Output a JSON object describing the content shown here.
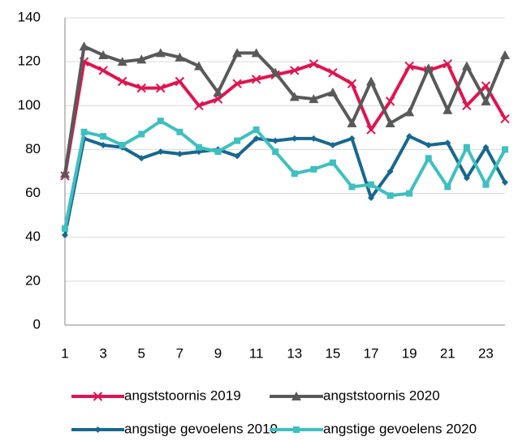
{
  "chart_data": {
    "type": "line",
    "categories": [
      1,
      null,
      3,
      null,
      5,
      null,
      7,
      null,
      9,
      null,
      11,
      null,
      13,
      null,
      15,
      null,
      17,
      null,
      19,
      null,
      21,
      null,
      23,
      null
    ],
    "ylim": [
      0,
      140
    ],
    "yticks": [
      0,
      20,
      40,
      60,
      80,
      100,
      120,
      140
    ],
    "grid": true,
    "legend": "bottom",
    "series": [
      {
        "name": "angststoornis 2019",
        "color": "#e0144f",
        "marker": "x",
        "values": [
          68,
          120,
          116,
          111,
          108,
          108,
          111,
          100,
          103,
          110,
          112,
          114,
          116,
          119,
          115,
          110,
          89,
          102,
          118,
          116,
          119,
          100,
          109,
          94
        ]
      },
      {
        "name": "angststoornis 2020",
        "color": "#595959",
        "marker": "triangle",
        "values": [
          69,
          127,
          123,
          120,
          121,
          124,
          122,
          118,
          106,
          124,
          124,
          115,
          104,
          103,
          106,
          92,
          111,
          92,
          97,
          117,
          98,
          118,
          102,
          123
        ]
      },
      {
        "name": "angstige gevoelens 2019",
        "color": "#17688f",
        "marker": "diamond",
        "values": [
          41,
          85,
          82,
          81,
          76,
          79,
          78,
          79,
          80,
          77,
          85,
          84,
          85,
          85,
          82,
          85,
          58,
          70,
          86,
          82,
          83,
          67,
          81,
          65
        ]
      },
      {
        "name": "angstige gevoelens 2020",
        "color": "#3fbfbf",
        "marker": "square",
        "values": [
          44,
          88,
          86,
          82,
          87,
          93,
          88,
          81,
          79,
          84,
          89,
          79,
          69,
          71,
          74,
          63,
          64,
          59,
          60,
          76,
          63,
          81,
          64,
          80
        ]
      }
    ]
  }
}
